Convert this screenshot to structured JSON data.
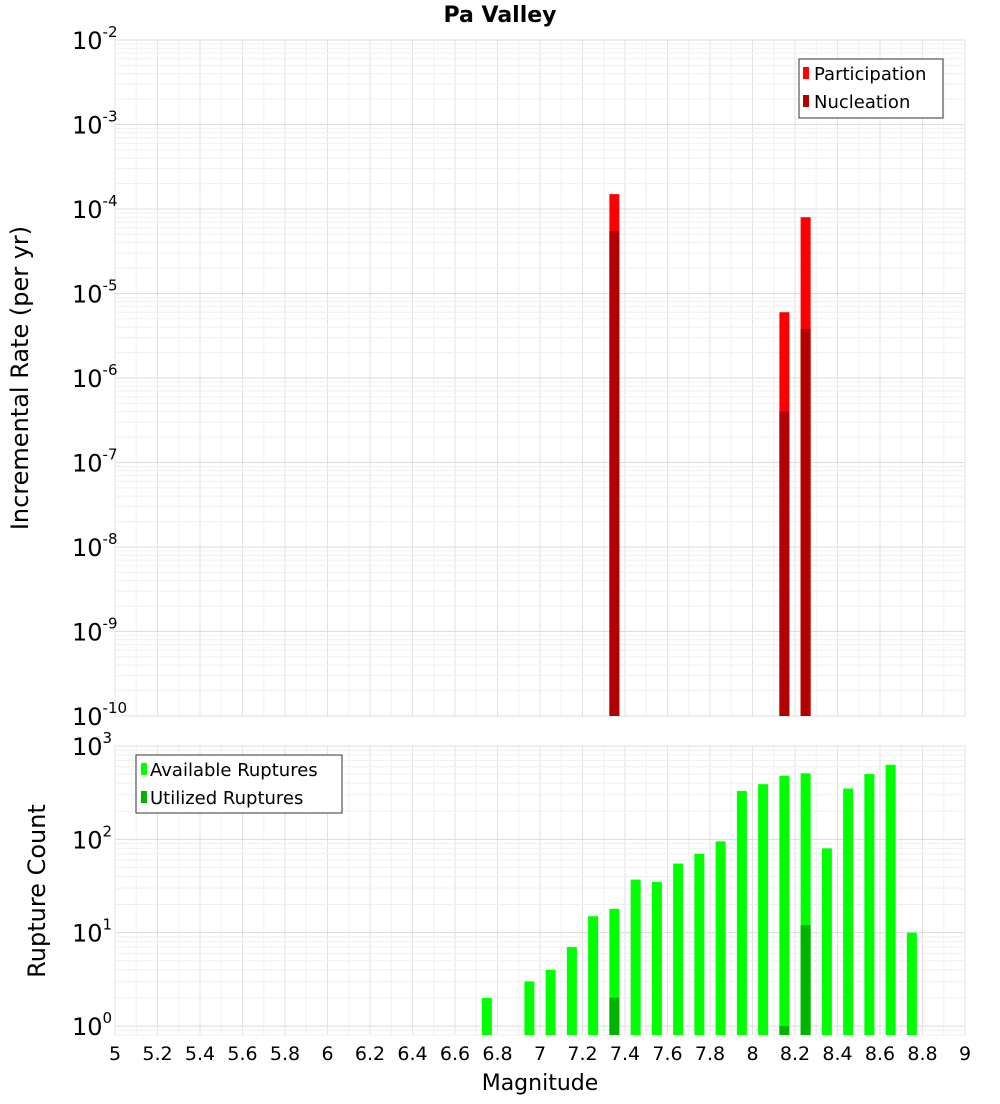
{
  "chart_data": [
    {
      "type": "bar",
      "title": "Pa Valley",
      "xlabel": "",
      "ylabel": "Incremental Rate (per yr)",
      "yscale": "log",
      "ylim": [
        1e-10,
        0.01
      ],
      "ytick_exponents": [
        "-2",
        "-3",
        "-4",
        "-5",
        "-6",
        "-7",
        "-8",
        "-9",
        "-10"
      ],
      "xlim": [
        5,
        9
      ],
      "grid": true,
      "legend_placement": "top-right",
      "colors": {
        "Participation": "#ff0000",
        "Nucleation": "#b30000"
      },
      "series": [
        {
          "name": "Participation",
          "x": [
            7.35,
            8.15,
            8.25
          ],
          "values": [
            0.00015,
            6e-06,
            8e-05
          ]
        },
        {
          "name": "Nucleation",
          "x": [
            7.35,
            8.15,
            8.25
          ],
          "values": [
            5.5e-05,
            4e-07,
            3.8e-06
          ]
        }
      ]
    },
    {
      "type": "bar",
      "xlabel": "Magnitude",
      "ylabel": "Rupture Count",
      "yscale": "log",
      "ylim": [
        0.8,
        1000
      ],
      "ytick_exponents": [
        "3",
        "2",
        "1",
        "0"
      ],
      "xlim": [
        5,
        9
      ],
      "xticks": [
        "5",
        "5.2",
        "5.4",
        "5.6",
        "5.8",
        "6",
        "6.2",
        "6.4",
        "6.6",
        "6.8",
        "7",
        "7.2",
        "7.4",
        "7.6",
        "7.8",
        "8",
        "8.2",
        "8.4",
        "8.6",
        "8.8",
        "9"
      ],
      "grid": true,
      "legend_placement": "top-left",
      "colors": {
        "Available Ruptures": "#00ff00",
        "Utilized Ruptures": "#00b300"
      },
      "series": [
        {
          "name": "Available Ruptures",
          "x": [
            6.75,
            6.95,
            7.05,
            7.15,
            7.25,
            7.35,
            7.45,
            7.55,
            7.65,
            7.75,
            7.85,
            7.95,
            8.05,
            8.15,
            8.25,
            8.35,
            8.45,
            8.55,
            8.65,
            8.75
          ],
          "values": [
            2,
            3,
            4,
            7,
            15,
            18,
            37,
            35,
            55,
            70,
            95,
            330,
            390,
            480,
            510,
            80,
            350,
            500,
            630,
            10
          ]
        },
        {
          "name": "Utilized Ruptures",
          "x": [
            7.35,
            8.15,
            8.25
          ],
          "values": [
            2,
            1,
            12
          ]
        }
      ]
    }
  ]
}
